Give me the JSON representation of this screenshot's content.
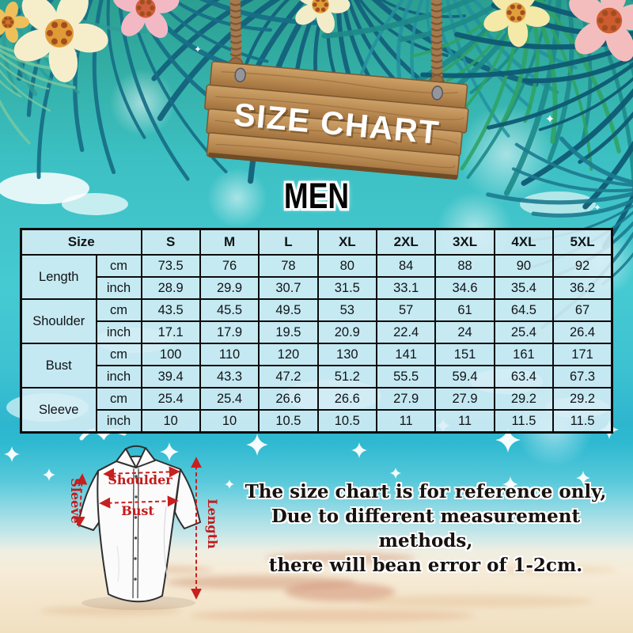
{
  "sign": {
    "title": "SIZE CHART"
  },
  "section": {
    "title": "MEN"
  },
  "chart_data": {
    "type": "table",
    "title": "SIZE CHART",
    "audience": "MEN",
    "columns": [
      "Size",
      "S",
      "M",
      "L",
      "XL",
      "2XL",
      "3XL",
      "4XL",
      "5XL"
    ],
    "unit_labels": [
      "cm",
      "inch"
    ],
    "measurements": [
      {
        "name": "Length",
        "cm": [
          "73.5",
          "76",
          "78",
          "80",
          "84",
          "88",
          "90",
          "92"
        ],
        "inch": [
          "28.9",
          "29.9",
          "30.7",
          "31.5",
          "33.1",
          "34.6",
          "35.4",
          "36.2"
        ]
      },
      {
        "name": "Shoulder",
        "cm": [
          "43.5",
          "45.5",
          "49.5",
          "53",
          "57",
          "61",
          "64.5",
          "67"
        ],
        "inch": [
          "17.1",
          "17.9",
          "19.5",
          "20.9",
          "22.4",
          "24",
          "25.4",
          "26.4"
        ]
      },
      {
        "name": "Bust",
        "cm": [
          "100",
          "110",
          "120",
          "130",
          "141",
          "151",
          "161",
          "171"
        ],
        "inch": [
          "39.4",
          "43.3",
          "47.2",
          "51.2",
          "55.5",
          "59.4",
          "63.4",
          "67.3"
        ]
      },
      {
        "name": "Sleeve",
        "cm": [
          "25.4",
          "25.4",
          "26.6",
          "26.6",
          "27.9",
          "27.9",
          "29.2",
          "29.2"
        ],
        "inch": [
          "10",
          "10",
          "10.5",
          "10.5",
          "11",
          "11",
          "11.5",
          "11.5"
        ]
      }
    ]
  },
  "diagram": {
    "shoulder_label": "Shoulder",
    "bust_label": "Bust",
    "sleeve_label": "Sleeve",
    "length_label": "Length"
  },
  "disclaimer": {
    "line1": "The size chart is for reference only,",
    "line2": "Due to different measurement methods,",
    "line3": "there will bean error of 1-2cm."
  },
  "colors": {
    "accent_red": "#c81f1f",
    "wood_brown": "#b5854e",
    "table_cell_blue": "#d8eef6",
    "background_teal": "#3fc2c8",
    "leaf_teal": "#15637c"
  }
}
